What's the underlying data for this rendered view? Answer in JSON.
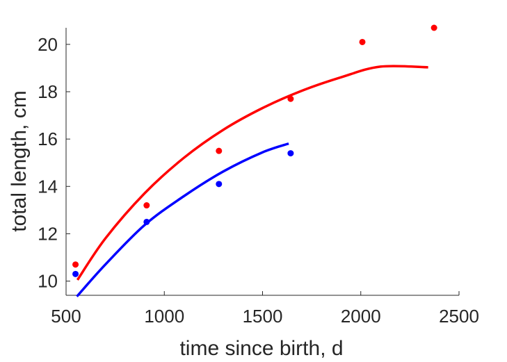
{
  "chart_data": {
    "type": "scatter",
    "title": "",
    "xlabel": "time since birth, d",
    "ylabel": "total length, cm",
    "xlim": [
      500,
      2500
    ],
    "ylim": [
      9.4,
      20.7
    ],
    "xticks": [
      500,
      1000,
      1500,
      2000,
      2500
    ],
    "yticks": [
      10,
      12,
      14,
      16,
      18,
      20
    ],
    "grid": false,
    "legend": "none",
    "series": [
      {
        "color": "#ff0000",
        "points": {
          "x": [
            548,
            910,
            1278,
            1643,
            2008,
            2373
          ],
          "y": [
            10.7,
            13.2,
            15.5,
            17.7,
            20.1,
            20.7
          ]
        },
        "fit": {
          "x": [
            558,
            700,
            900,
            1100,
            1300,
            1500,
            1700,
            1900,
            2100,
            2343
          ],
          "y": [
            10.05,
            11.8,
            13.71,
            15.21,
            16.39,
            17.31,
            18.04,
            18.61,
            19.06,
            19.03
          ]
        }
      },
      {
        "color": "#0000ff",
        "points": {
          "x": [
            548,
            910,
            1278,
            1643
          ],
          "y": [
            10.3,
            12.5,
            14.1,
            15.4
          ]
        },
        "fit": {
          "x": [
            555,
            700,
            900,
            1100,
            1300,
            1500,
            1633
          ],
          "y": [
            9.35,
            10.7,
            12.37,
            13.59,
            14.63,
            15.44,
            15.81
          ]
        }
      }
    ]
  }
}
